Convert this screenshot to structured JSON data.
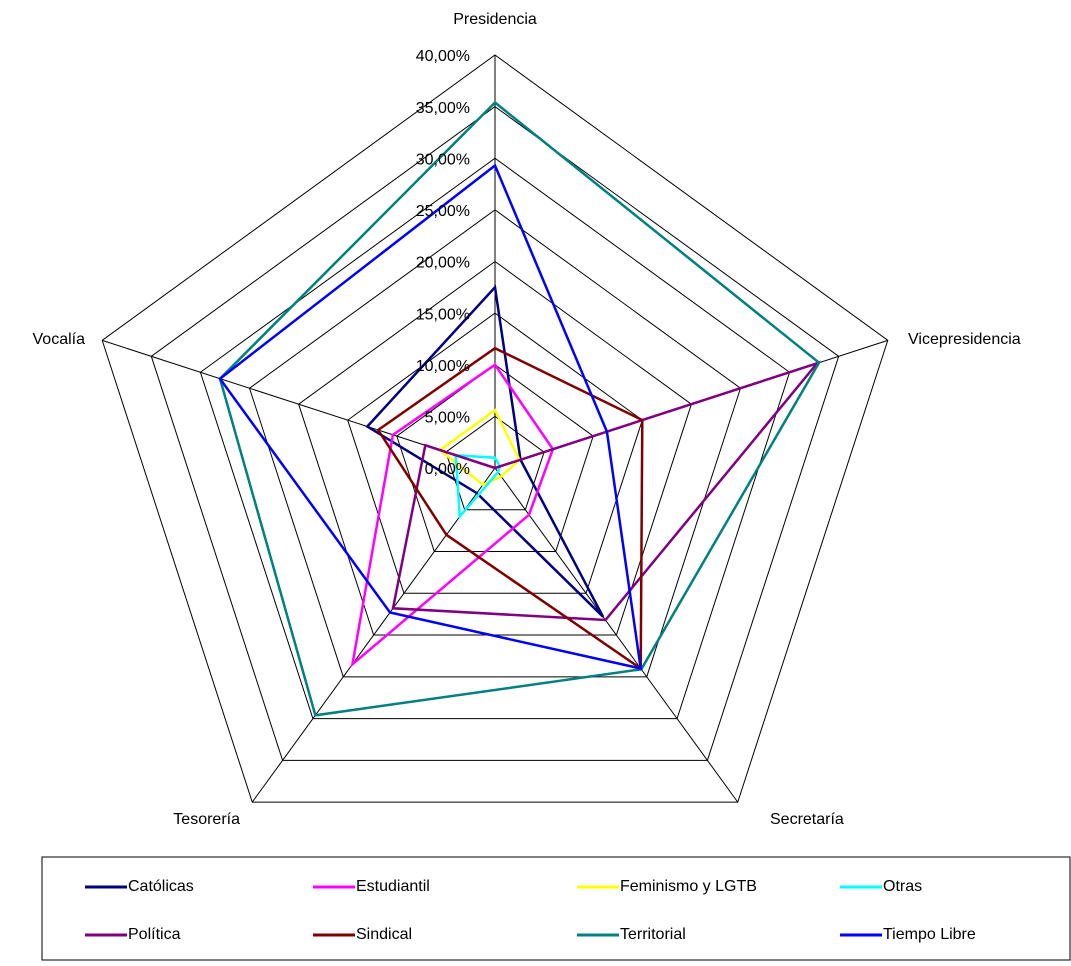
{
  "chart_data": {
    "type": "radar",
    "categories": [
      "Presidencia",
      "Vicepresidencia",
      "Secretaría",
      "Tesorería",
      "Vocalía"
    ],
    "ylim": [
      0,
      40
    ],
    "yticks": [
      {
        "value": 0,
        "label": "0,00%"
      },
      {
        "value": 5,
        "label": "5,00%"
      },
      {
        "value": 10,
        "label": "10,00%"
      },
      {
        "value": 15,
        "label": "15,00%"
      },
      {
        "value": 20,
        "label": "20,00%"
      },
      {
        "value": 25,
        "label": "25,00%"
      },
      {
        "value": 30,
        "label": "30,00%"
      },
      {
        "value": 35,
        "label": "35,00%"
      },
      {
        "value": 40,
        "label": "40,00%"
      }
    ],
    "grid": true,
    "legend": "bottom",
    "series": [
      {
        "name": "Católicas",
        "color": "#000080",
        "values": [
          17.5,
          2.6,
          17.8,
          3,
          13
        ]
      },
      {
        "name": "Estudiantil",
        "color": "#ff00ff",
        "values": [
          10,
          5.9,
          5.6,
          23.5,
          10.4
        ]
      },
      {
        "name": "Feminismo y LGTB",
        "color": "#ffff00",
        "values": [
          5.6,
          2.5,
          1,
          2,
          5.6
        ]
      },
      {
        "name": "Otras",
        "color": "#00ffff",
        "values": [
          1,
          0.5,
          0.5,
          5.8,
          4
        ]
      },
      {
        "name": "Política",
        "color": "#800080",
        "values": [
          0,
          32.8,
          18.2,
          16.8,
          7.1
        ]
      },
      {
        "name": "Sindical",
        "color": "#800000",
        "values": [
          11.6,
          15,
          24,
          8,
          11.9
        ]
      },
      {
        "name": "Territorial",
        "color": "#008080",
        "values": [
          35.4,
          33,
          24.1,
          29.6,
          28
        ]
      },
      {
        "name": "Tiempo Libre",
        "color": "#0000ff",
        "values": [
          29.3,
          11.4,
          24,
          17.3,
          28
        ]
      }
    ]
  }
}
